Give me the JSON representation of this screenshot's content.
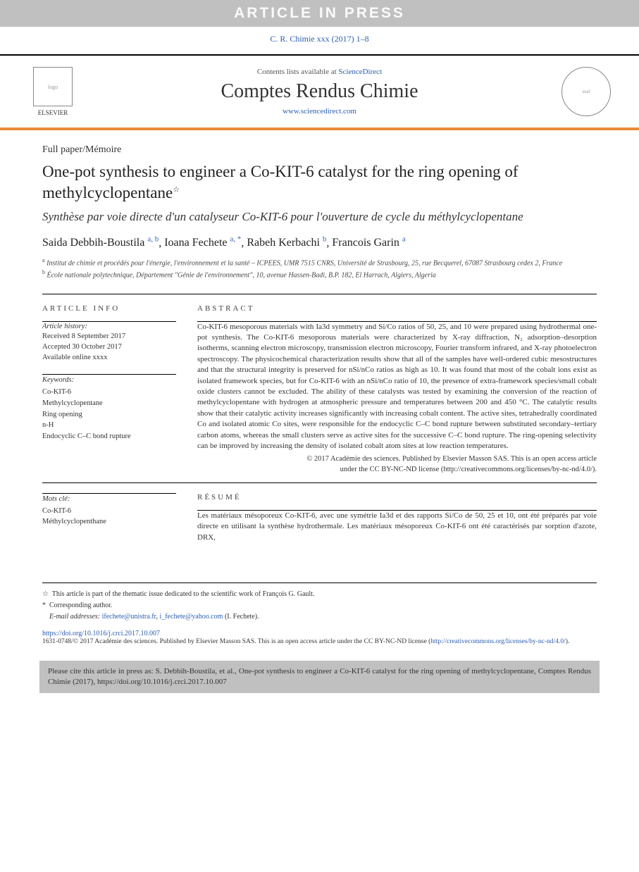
{
  "banner": "ARTICLE IN PRESS",
  "citation_header": "C. R. Chimie xxx (2017) 1–8",
  "header": {
    "contents_prefix": "Contents lists available at ",
    "contents_link": "ScienceDirect",
    "journal_name": "Comptes Rendus Chimie",
    "journal_url": "www.sciencedirect.com",
    "elsevier_label": "ELSEVIER"
  },
  "paper_type": "Full paper/Mémoire",
  "title": "One-pot synthesis to engineer a Co-KIT-6 catalyst for the ring opening of methylcyclopentane",
  "title_star": "☆",
  "subtitle": "Synthèse par voie directe d'un catalyseur Co-KIT-6 pour l'ouverture de cycle du méthylcyclopentane",
  "authors": [
    {
      "name": "Saida Debbih-Boustila",
      "aff": "a, b"
    },
    {
      "name": "Ioana Fechete",
      "aff": "a, *"
    },
    {
      "name": "Rabeh Kerbachi",
      "aff": "b"
    },
    {
      "name": "Francois Garin",
      "aff": "a"
    }
  ],
  "affiliations": [
    {
      "sup": "a",
      "text": "Institut de chimie et procédés pour l'énergie, l'environnement et la santé – ICPEES, UMR 7515 CNRS, Université de Strasbourg, 25, rue Becquerel, 67087 Strasbourg cedex 2, France"
    },
    {
      "sup": "b",
      "text": "École nationale polytechnique, Département \"Génie de l'environnement\", 10, avenue Hassen-Badi, B.P. 182, El Harrach, Algiers, Algeria"
    }
  ],
  "article_info_label": "ARTICLE INFO",
  "abstract_label": "ABSTRACT",
  "resume_label": "RÉSUMÉ",
  "history": {
    "label": "Article history:",
    "received": "Received 8 September 2017",
    "accepted": "Accepted 30 October 2017",
    "online": "Available online xxxx"
  },
  "keywords": {
    "label": "Keywords:",
    "items": [
      "Co-KIT-6",
      "Methylcyclopentane",
      "Ring opening",
      "n-H",
      "Endocyclic C–C bond rupture"
    ]
  },
  "mots_cle": {
    "label": "Mots clé:",
    "items": [
      "Co-KIT-6",
      "Méthylcyclopenthane"
    ]
  },
  "abstract": "Co-KIT-6 mesoporous materials with Ia3d symmetry and Si/Co ratios of 50, 25, and 10 were prepared using hydrothermal one-pot synthesis. The Co-KIT-6 mesoporous materials were characterized by X-ray diffraction, N₂ adsorption–desorption isotherms, scanning electron microscopy, transmission electron microscopy, Fourier transform infrared, and X-ray photoelectron spectroscopy. The physicochemical characterization results show that all of the samples have well-ordered cubic mesostructures and that the structural integrity is preserved for nSi/nCo ratios as high as 10. It was found that most of the cobalt ions exist as isolated framework species, but for Co-KIT-6 with an nSi/nCo ratio of 10, the presence of extra-framework species/small cobalt oxide clusters cannot be excluded. The ability of these catalysts was tested by examining the conversion of the reaction of methylcyclopentane with hydrogen at atmospheric pressure and temperatures between 200 and 450 °C. The catalytic results show that their catalytic activity increases significantly with increasing cobalt content. The active sites, tetrahedrally coordinated Co and isolated atomic Co sites, were responsible for the endocyclic C–C bond rupture between substituted secondary–tertiary carbon atoms, whereas the small clusters serve as active sites for the successive C–C bond rupture. The ring-opening selectivity can be improved by increasing the density of isolated cobalt atom sites at low reaction temperatures.",
  "copyright_line1": "© 2017 Académie des sciences. Published by Elsevier Masson SAS. This is an open access article",
  "copyright_line2": "under the CC BY-NC-ND license (",
  "cc_url": "http://creativecommons.org/licenses/by-nc-nd/4.0/",
  "copyright_close": ").",
  "resume": "Les matériaux mésoporeux Co-KIT-6, avec une symétrie Ia3d et des rapports Si/Co de 50, 25 et 10, ont été préparés par voie directe en utilisant la synthèse hydrothermale. Les matériaux mésoporeux Co-KIT-6 ont été caractérisés par sorption d'azote, DRX,",
  "footnotes": {
    "thematic": "This article is part of the thematic issue dedicated to the scientific work of François G. Gault.",
    "corresponding": "Corresponding author.",
    "email_label": "E-mail addresses:",
    "emails": [
      "ifechete@unistra.fr",
      "i_fechete@yahoo.com"
    ],
    "email_owner": "(I. Fechete)."
  },
  "doi": "https://doi.org/10.1016/j.crci.2017.10.007",
  "issn_text": "1631-0748/© 2017 Académie des sciences. Published by Elsevier Masson SAS. This is an open access article under the CC BY-NC-ND license (",
  "issn_url": "http://creativecommons.org/licenses/by-nc-nd/4.0/",
  "issn_close": ").",
  "cite_box": "Please cite this article in press as: S. Debbih-Boustila, et al., One-pot synthesis to engineer a Co-KIT-6 catalyst for the ring opening of methylcyclopentane, Comptes Rendus Chimie (2017), https://doi.org/10.1016/j.crci.2017.10.007",
  "colors": {
    "accent_orange": "#e98b3b",
    "link_blue": "#2a5db0",
    "banner_gray": "#c0c0c0"
  }
}
